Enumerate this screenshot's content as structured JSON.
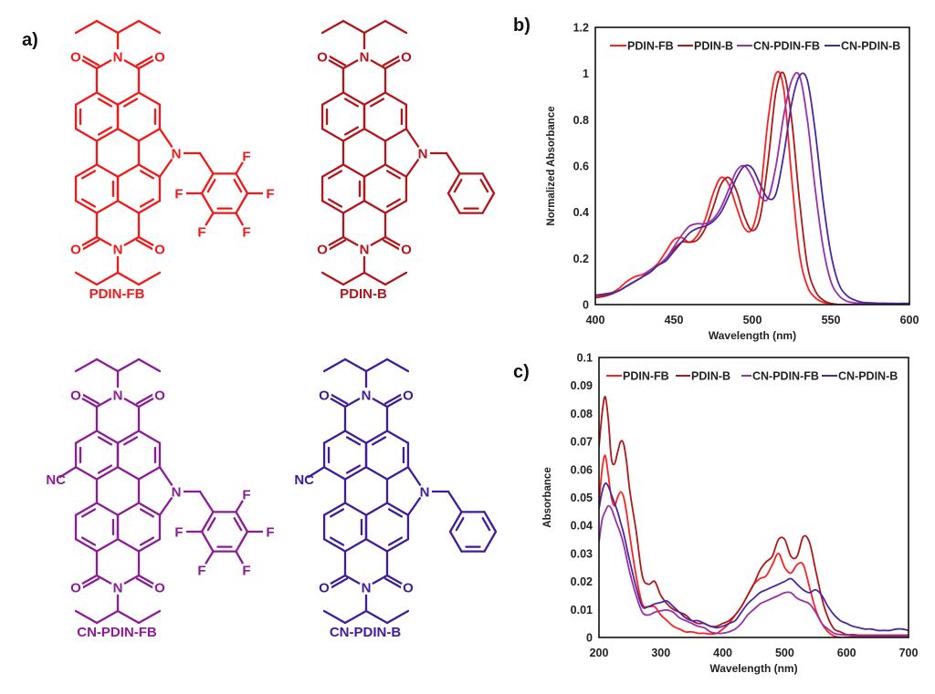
{
  "panels": {
    "a": "a)",
    "b": "b)",
    "c": "c)"
  },
  "structures": [
    {
      "name": "PDIN-FB",
      "color": "#f21818",
      "cyano": false,
      "fluorinated": true
    },
    {
      "name": "PDIN-B",
      "color": "#b3151b",
      "cyano": false,
      "fluorinated": false
    },
    {
      "name": "CN-PDIN-FB",
      "color": "#8b1b96",
      "cyano": true,
      "fluorinated": true
    },
    {
      "name": "CN-PDIN-B",
      "color": "#3f1c99",
      "cyano": true,
      "fluorinated": false
    }
  ],
  "atoms": {
    "O": "O",
    "N": "N",
    "F": "F",
    "NC": "NC"
  },
  "chart_data": [
    {
      "type": "line",
      "title": "",
      "xlabel": "Wavelength (nm)",
      "ylabel": "Normalized Absorbance",
      "xlim": [
        400,
        600
      ],
      "ylim": [
        0,
        1.2
      ],
      "xticks": [
        400,
        450,
        500,
        550,
        600
      ],
      "xtick_labels": [
        "400",
        "450",
        "500",
        "550",
        "600"
      ],
      "yticks": [
        0,
        0.2,
        0.4,
        0.6,
        0.8,
        1,
        1.2
      ],
      "ytick_labels": [
        "0",
        "0.2",
        "0.4",
        "0.6",
        "0.8",
        "1",
        "1.2"
      ],
      "grid": false,
      "legend_position": "top",
      "x": [
        400,
        405,
        410,
        415,
        420,
        425,
        430,
        435,
        440,
        445,
        450,
        455,
        460,
        465,
        470,
        475,
        480,
        485,
        490,
        495,
        500,
        505,
        510,
        515,
        520,
        525,
        530,
        535,
        540,
        545,
        550,
        555,
        560,
        565,
        570,
        575,
        580,
        585,
        590,
        595,
        600
      ],
      "series": [
        {
          "name": "PDIN-FB",
          "color": "#ff2020",
          "values": [
            0.03,
            0.04,
            0.05,
            0.07,
            0.1,
            0.12,
            0.13,
            0.15,
            0.18,
            0.23,
            0.28,
            0.29,
            0.27,
            0.3,
            0.37,
            0.48,
            0.55,
            0.52,
            0.42,
            0.33,
            0.33,
            0.48,
            0.8,
            1.0,
            0.93,
            0.55,
            0.22,
            0.08,
            0.03,
            0.01,
            0.005,
            0,
            0,
            0,
            0,
            0,
            0,
            0,
            0,
            0,
            0
          ]
        },
        {
          "name": "PDIN-B",
          "color": "#b01818",
          "values": [
            0.03,
            0.035,
            0.045,
            0.06,
            0.08,
            0.1,
            0.12,
            0.15,
            0.17,
            0.2,
            0.24,
            0.27,
            0.27,
            0.28,
            0.33,
            0.42,
            0.52,
            0.55,
            0.49,
            0.38,
            0.32,
            0.38,
            0.62,
            0.92,
            1.0,
            0.8,
            0.45,
            0.17,
            0.06,
            0.02,
            0.005,
            0,
            0,
            0,
            0,
            0,
            0,
            0,
            0,
            0,
            0
          ]
        },
        {
          "name": "CN-PDIN-FB",
          "color": "#9a30a8",
          "values": [
            0.04,
            0.045,
            0.05,
            0.06,
            0.08,
            0.1,
            0.12,
            0.15,
            0.17,
            0.2,
            0.25,
            0.3,
            0.34,
            0.35,
            0.35,
            0.37,
            0.42,
            0.5,
            0.58,
            0.6,
            0.55,
            0.47,
            0.46,
            0.6,
            0.82,
            0.97,
            0.99,
            0.8,
            0.5,
            0.25,
            0.1,
            0.04,
            0.015,
            0.008,
            0.005,
            0.004,
            0.003,
            0.003,
            0.003,
            0.003,
            0.003
          ]
        },
        {
          "name": "CN-PDIN-B",
          "color": "#4a28a0",
          "values": [
            0.04,
            0.045,
            0.05,
            0.06,
            0.08,
            0.1,
            0.12,
            0.14,
            0.17,
            0.19,
            0.23,
            0.27,
            0.31,
            0.33,
            0.34,
            0.36,
            0.4,
            0.47,
            0.55,
            0.6,
            0.59,
            0.52,
            0.46,
            0.48,
            0.65,
            0.87,
            0.99,
            0.97,
            0.75,
            0.45,
            0.22,
            0.09,
            0.04,
            0.02,
            0.01,
            0.008,
            0.006,
            0.006,
            0.005,
            0.005,
            0.005
          ]
        }
      ]
    },
    {
      "type": "line",
      "title": "",
      "xlabel": "Wavelength (nm)",
      "ylabel": "Absorbance",
      "xlim": [
        200,
        700
      ],
      "ylim": [
        0,
        0.1
      ],
      "xticks": [
        200,
        300,
        400,
        500,
        600,
        700
      ],
      "xtick_labels": [
        "200",
        "300",
        "400",
        "500",
        "600",
        "700"
      ],
      "yticks": [
        0,
        0.01,
        0.02,
        0.03,
        0.04,
        0.05,
        0.06,
        0.07,
        0.08,
        0.09,
        0.1
      ],
      "ytick_labels": [
        "0",
        "0.01",
        "0.02",
        "0.03",
        "0.04",
        "0.05",
        "0.06",
        "0.07",
        "0.08",
        "0.09",
        "0.1"
      ],
      "grid": false,
      "legend_position": "top",
      "x": [
        200,
        205,
        210,
        215,
        220,
        225,
        230,
        235,
        240,
        245,
        250,
        260,
        270,
        280,
        290,
        300,
        310,
        320,
        330,
        340,
        350,
        360,
        370,
        380,
        390,
        400,
        410,
        420,
        430,
        440,
        450,
        460,
        470,
        480,
        490,
        500,
        510,
        520,
        530,
        540,
        550,
        560,
        570,
        580,
        590,
        600,
        610,
        620,
        630,
        640,
        650,
        660,
        670,
        680,
        690,
        700
      ],
      "series": [
        {
          "name": "PDIN-FB",
          "color": "#ff2020",
          "values": [
            0.048,
            0.06,
            0.065,
            0.058,
            0.05,
            0.047,
            0.05,
            0.052,
            0.05,
            0.044,
            0.036,
            0.022,
            0.012,
            0.011,
            0.011,
            0.008,
            0.006,
            0.004,
            0.003,
            0.002,
            0.002,
            0.0015,
            0.0015,
            0.0012,
            0.0015,
            0.003,
            0.005,
            0.008,
            0.011,
            0.015,
            0.019,
            0.021,
            0.022,
            0.026,
            0.03,
            0.025,
            0.023,
            0.026,
            0.026,
            0.018,
            0.01,
            0.005,
            0.002,
            0.0005,
            0,
            0,
            0,
            0,
            0,
            0,
            0,
            0,
            0,
            0,
            0,
            0
          ]
        },
        {
          "name": "PDIN-B",
          "color": "#b01818",
          "values": [
            0.068,
            0.08,
            0.086,
            0.078,
            0.064,
            0.062,
            0.066,
            0.07,
            0.069,
            0.062,
            0.052,
            0.038,
            0.022,
            0.019,
            0.02,
            0.015,
            0.012,
            0.01,
            0.009,
            0.008,
            0.006,
            0.005,
            0.005,
            0.004,
            0.004,
            0.005,
            0.006,
            0.008,
            0.011,
            0.015,
            0.019,
            0.024,
            0.027,
            0.029,
            0.035,
            0.035,
            0.029,
            0.029,
            0.036,
            0.034,
            0.024,
            0.014,
            0.007,
            0.003,
            0.002,
            0.001,
            0.001,
            0.0008,
            0.0008,
            0.0008,
            0.0008,
            0.0008,
            0.0008,
            0.0008,
            0.0008,
            0.0008
          ]
        },
        {
          "name": "CN-PDIN-FB",
          "color": "#9a30a8",
          "values": [
            0.034,
            0.042,
            0.045,
            0.047,
            0.046,
            0.043,
            0.04,
            0.037,
            0.033,
            0.028,
            0.023,
            0.015,
            0.009,
            0.008,
            0.009,
            0.0095,
            0.0098,
            0.009,
            0.007,
            0.006,
            0.005,
            0.004,
            0.0035,
            0.002,
            0.0015,
            0.0015,
            0.002,
            0.003,
            0.005,
            0.008,
            0.01,
            0.012,
            0.013,
            0.014,
            0.015,
            0.016,
            0.016,
            0.014,
            0.013,
            0.012,
            0.009,
            0.005,
            0.003,
            0.0015,
            0.001,
            0.0008,
            0.0006,
            0.0005,
            0.0005,
            0.0005,
            0.0005,
            0.0005,
            0.0005,
            0.0005,
            0.0005,
            0.0005
          ]
        },
        {
          "name": "CN-PDIN-B",
          "color": "#4a28a0",
          "values": [
            0.046,
            0.052,
            0.055,
            0.054,
            0.051,
            0.048,
            0.045,
            0.041,
            0.037,
            0.032,
            0.027,
            0.018,
            0.011,
            0.011,
            0.012,
            0.0125,
            0.013,
            0.011,
            0.009,
            0.007,
            0.006,
            0.006,
            0.005,
            0.004,
            0.0035,
            0.004,
            0.005,
            0.006,
            0.009,
            0.012,
            0.014,
            0.016,
            0.017,
            0.018,
            0.019,
            0.02,
            0.021,
            0.019,
            0.017,
            0.016,
            0.017,
            0.015,
            0.011,
            0.008,
            0.006,
            0.005,
            0.004,
            0.0035,
            0.003,
            0.003,
            0.0025,
            0.0025,
            0.0025,
            0.003,
            0.003,
            0.0025
          ]
        }
      ]
    }
  ]
}
